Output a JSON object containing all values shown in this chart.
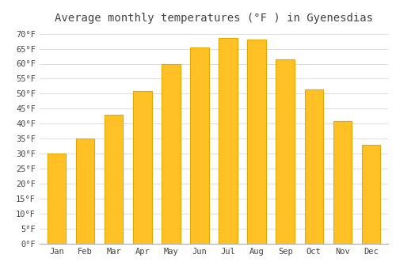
{
  "title": "Average monthly temperatures (°F ) in GyenesdiÃÂÃ¢ÂÃ¡s",
  "title_text": "Average monthly temperatures (°F ) in Gyenesdias",
  "months": [
    "Jan",
    "Feb",
    "Mar",
    "Apr",
    "May",
    "Jun",
    "Jul",
    "Aug",
    "Sep",
    "Oct",
    "Nov",
    "Dec"
  ],
  "values": [
    30,
    35,
    43,
    51,
    60,
    65.5,
    68.5,
    68,
    61.5,
    51.5,
    41,
    33
  ],
  "bar_color": "#FFC125",
  "bar_edge_color": "#E8A800",
  "ylim": [
    0,
    72
  ],
  "yticks": [
    0,
    5,
    10,
    15,
    20,
    25,
    30,
    35,
    40,
    45,
    50,
    55,
    60,
    65,
    70
  ],
  "background_color": "#FFFFFF",
  "grid_color": "#DDDDDD",
  "font_color": "#444444",
  "title_fontsize": 10,
  "tick_fontsize": 7.5
}
